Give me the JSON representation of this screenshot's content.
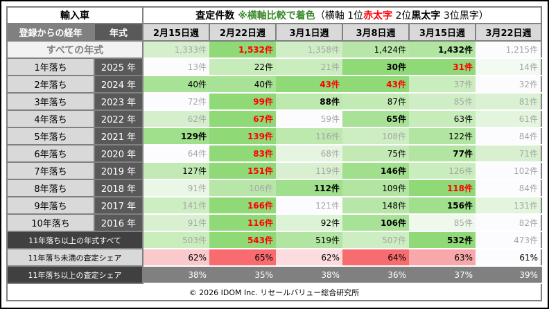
{
  "title": {
    "left": "輸入車",
    "main": "査定件数 ",
    "note": "※横軸比較で着色",
    "legend_a": "（横軸 1位",
    "legend_red": "赤太字",
    "legend_b": " 2位",
    "legend_bold": "黒太字",
    "legend_c": " 3位黒字）"
  },
  "header": {
    "elapsed": "登録からの経年",
    "model_year": "年式",
    "weeks": [
      "2月15日週",
      "2月22日週",
      "3月1日週",
      "3月8日週",
      "3月15日週",
      "3月22日週"
    ]
  },
  "all_row": {
    "label": "すべての年式",
    "cells": [
      {
        "v": "1,333件",
        "bg": "#d5efcd",
        "s": "g"
      },
      {
        "v": "1,532件",
        "bg": "#8fd977",
        "s": "r"
      },
      {
        "v": "1,358件",
        "bg": "#d0eec6",
        "s": "g"
      },
      {
        "v": "1,424件",
        "bg": "#b8e6a8",
        "s": "n"
      },
      {
        "v": "1,432件",
        "bg": "#b3e5a2",
        "s": "b"
      },
      {
        "v": "1,215件",
        "bg": "#fcfcfe",
        "s": "g"
      }
    ]
  },
  "rows": [
    {
      "label": "1年落ち",
      "year": "2025 年",
      "cells": [
        {
          "v": "13件",
          "bg": "#fcfcfe",
          "s": "g"
        },
        {
          "v": "22件",
          "bg": "#c6ecb9",
          "s": "n"
        },
        {
          "v": "21件",
          "bg": "#c9edbd",
          "s": "g"
        },
        {
          "v": "30件",
          "bg": "#8fd977",
          "s": "b"
        },
        {
          "v": "31件",
          "bg": "#8fd977",
          "s": "r"
        },
        {
          "v": "14件",
          "bg": "#f3faf1",
          "s": "g"
        }
      ]
    },
    {
      "label": "2年落ち",
      "year": "2024 年",
      "cells": [
        {
          "v": "40件",
          "bg": "#a8e296",
          "s": "n"
        },
        {
          "v": "40件",
          "bg": "#a8e296",
          "s": "n"
        },
        {
          "v": "43件",
          "bg": "#8fd977",
          "s": "r"
        },
        {
          "v": "43件",
          "bg": "#8fd977",
          "s": "r"
        },
        {
          "v": "37件",
          "bg": "#c9edbd",
          "s": "g"
        },
        {
          "v": "32件",
          "bg": "#fcfcfe",
          "s": "g"
        }
      ]
    },
    {
      "label": "3年落ち",
      "year": "2023 年",
      "cells": [
        {
          "v": "72件",
          "bg": "#fcfcfe",
          "s": "g"
        },
        {
          "v": "99件",
          "bg": "#8fd977",
          "s": "r"
        },
        {
          "v": "88件",
          "bg": "#bde8ae",
          "s": "b"
        },
        {
          "v": "87件",
          "bg": "#c3eab5",
          "s": "n"
        },
        {
          "v": "85件",
          "bg": "#d0eec6",
          "s": "g"
        },
        {
          "v": "81件",
          "bg": "#daf2d3",
          "s": "g"
        }
      ]
    },
    {
      "label": "4年落ち",
      "year": "2022 年",
      "cells": [
        {
          "v": "62件",
          "bg": "#d5efcd",
          "s": "g"
        },
        {
          "v": "67件",
          "bg": "#8fd977",
          "s": "r"
        },
        {
          "v": "59件",
          "bg": "#fcfcfe",
          "s": "g"
        },
        {
          "v": "65件",
          "bg": "#a8e296",
          "s": "b"
        },
        {
          "v": "63件",
          "bg": "#c6ecb9",
          "s": "n"
        },
        {
          "v": "61件",
          "bg": "#e3f5dd",
          "s": "g"
        }
      ]
    },
    {
      "label": "5年落ち",
      "year": "2021 年",
      "cells": [
        {
          "v": "129件",
          "bg": "#a0df8c",
          "s": "b"
        },
        {
          "v": "139件",
          "bg": "#8fd977",
          "s": "r"
        },
        {
          "v": "116件",
          "bg": "#bde8ae",
          "s": "g"
        },
        {
          "v": "108件",
          "bg": "#cdedc2",
          "s": "g"
        },
        {
          "v": "122件",
          "bg": "#b3e5a2",
          "s": "n"
        },
        {
          "v": "84件",
          "bg": "#fcfcfe",
          "s": "g"
        }
      ]
    },
    {
      "label": "6年落ち",
      "year": "2020 年",
      "cells": [
        {
          "v": "64件",
          "bg": "#fcfcfe",
          "s": "g"
        },
        {
          "v": "83件",
          "bg": "#8fd977",
          "s": "r"
        },
        {
          "v": "68件",
          "bg": "#e6f5e1",
          "s": "g"
        },
        {
          "v": "75件",
          "bg": "#c3eab5",
          "s": "n"
        },
        {
          "v": "77件",
          "bg": "#b3e5a2",
          "s": "b"
        },
        {
          "v": "71件",
          "bg": "#d8f0d0",
          "s": "g"
        }
      ]
    },
    {
      "label": "7年落ち",
      "year": "2019 年",
      "cells": [
        {
          "v": "127件",
          "bg": "#c3eab5",
          "s": "n"
        },
        {
          "v": "151件",
          "bg": "#8fd977",
          "s": "r"
        },
        {
          "v": "119件",
          "bg": "#d8f0d0",
          "s": "g"
        },
        {
          "v": "146件",
          "bg": "#a0df8c",
          "s": "b"
        },
        {
          "v": "126件",
          "bg": "#c9edbd",
          "s": "g"
        },
        {
          "v": "102件",
          "bg": "#fcfcfe",
          "s": "g"
        }
      ]
    },
    {
      "label": "8年落ち",
      "year": "2018 年",
      "cells": [
        {
          "v": "91件",
          "bg": "#eaf7e6",
          "s": "g"
        },
        {
          "v": "106件",
          "bg": "#b8e6a8",
          "s": "g"
        },
        {
          "v": "112件",
          "bg": "#a0df8c",
          "s": "b"
        },
        {
          "v": "109件",
          "bg": "#b3e5a2",
          "s": "n"
        },
        {
          "v": "118件",
          "bg": "#8fd977",
          "s": "r"
        },
        {
          "v": "84件",
          "bg": "#fcfcfe",
          "s": "g"
        }
      ]
    },
    {
      "label": "9年落ち",
      "year": "2017 年",
      "cells": [
        {
          "v": "141件",
          "bg": "#cdedc2",
          "s": "g"
        },
        {
          "v": "166件",
          "bg": "#8fd977",
          "s": "r"
        },
        {
          "v": "121件",
          "bg": "#fcfcfe",
          "s": "g"
        },
        {
          "v": "148件",
          "bg": "#b8e6a8",
          "s": "n"
        },
        {
          "v": "156件",
          "bg": "#a0df8c",
          "s": "b"
        },
        {
          "v": "131件",
          "bg": "#e3f5dd",
          "s": "g"
        }
      ]
    },
    {
      "label": "10年落ち",
      "year": "2016 年",
      "cells": [
        {
          "v": "91件",
          "bg": "#d8f0d0",
          "s": "g"
        },
        {
          "v": "116件",
          "bg": "#8fd977",
          "s": "r"
        },
        {
          "v": "92件",
          "bg": "#dcf3d5",
          "s": "n"
        },
        {
          "v": "106件",
          "bg": "#a8e296",
          "s": "b"
        },
        {
          "v": "85件",
          "bg": "#eef8eb",
          "s": "g"
        },
        {
          "v": "82件",
          "bg": "#fcfcfe",
          "s": "g"
        }
      ]
    }
  ],
  "older_row": {
    "label": "11年落ち以上の年式すべて",
    "cells": [
      {
        "v": "503件",
        "bg": "#c9edbd",
        "s": "g"
      },
      {
        "v": "543件",
        "bg": "#8fd977",
        "s": "r"
      },
      {
        "v": "519件",
        "bg": "#b3e5a2",
        "s": "n"
      },
      {
        "v": "507件",
        "bg": "#cdedc2",
        "s": "g"
      },
      {
        "v": "532件",
        "bg": "#8fd977",
        "s": "b"
      },
      {
        "v": "473件",
        "bg": "#fcfcfe",
        "s": "g"
      }
    ]
  },
  "share_under_row": {
    "label": "11年落ち未満の査定シェア",
    "cells": [
      {
        "v": "62%",
        "bg": "#f9c9cb",
        "s": "n"
      },
      {
        "v": "65%",
        "bg": "#f86b6e",
        "s": "n"
      },
      {
        "v": "62%",
        "bg": "#fcdcde",
        "s": "n"
      },
      {
        "v": "64%",
        "bg": "#f76c6e",
        "s": "n"
      },
      {
        "v": "63%",
        "bg": "#f8a8ab",
        "s": "n"
      },
      {
        "v": "61%",
        "bg": "#fcfcfe",
        "s": "n"
      }
    ]
  },
  "share_over_row": {
    "label": "11年落ち以上の査定シェア",
    "cells": [
      {
        "v": "38%",
        "bg": "#808080",
        "s": "w"
      },
      {
        "v": "35%",
        "bg": "#808080",
        "s": "w"
      },
      {
        "v": "38%",
        "bg": "#808080",
        "s": "w"
      },
      {
        "v": "36%",
        "bg": "#808080",
        "s": "w"
      },
      {
        "v": "37%",
        "bg": "#808080",
        "s": "w"
      },
      {
        "v": "39%",
        "bg": "#808080",
        "s": "w"
      }
    ]
  },
  "footer": "© 2026 IDOM Inc. リセールバリュー総合研究所"
}
